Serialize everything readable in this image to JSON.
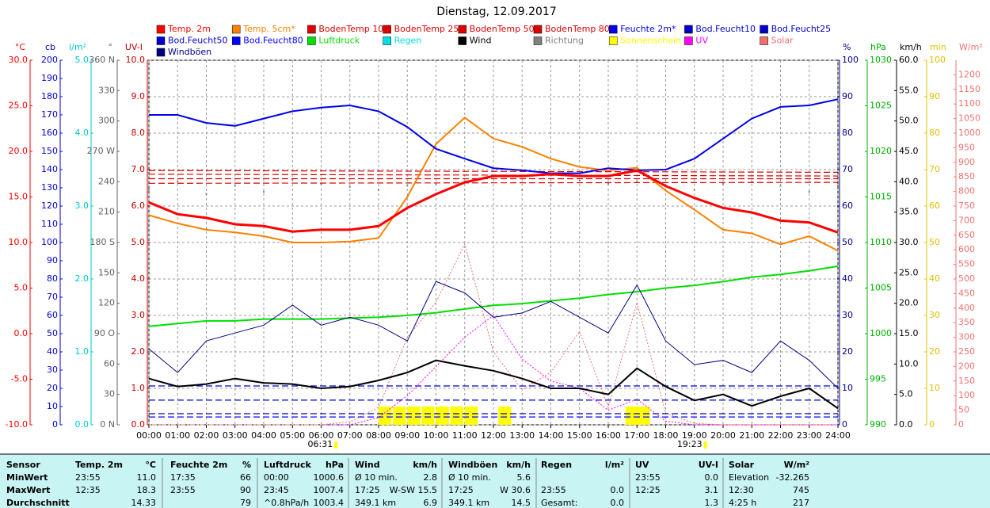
{
  "chart_data": {
    "type": "line",
    "title": "Dienstag, 12.09.2017",
    "grid": true,
    "grid_axis": "uv",
    "xlim": [
      0,
      24
    ],
    "xticks": [
      {
        "value": 0,
        "label": "00:00"
      },
      {
        "value": 1,
        "label": "01:00"
      },
      {
        "value": 2,
        "label": "02:00"
      },
      {
        "value": 3,
        "label": "03:00"
      },
      {
        "value": 4,
        "label": "04:00"
      },
      {
        "value": 5,
        "label": "05:00"
      },
      {
        "value": 6,
        "label": "06:00"
      },
      {
        "value": 7,
        "label": "07:00"
      },
      {
        "value": 8,
        "label": "08:00"
      },
      {
        "value": 9,
        "label": "09:00"
      },
      {
        "value": 10,
        "label": "10:00"
      },
      {
        "value": 11,
        "label": "11:00"
      },
      {
        "value": 12,
        "label": "12:00"
      },
      {
        "value": 13,
        "label": "13:00"
      },
      {
        "value": 14,
        "label": "14:00"
      },
      {
        "value": 15,
        "label": "15:00"
      },
      {
        "value": 16,
        "label": "16:00"
      },
      {
        "value": 17,
        "label": "17:00"
      },
      {
        "value": 18,
        "label": "18:00"
      },
      {
        "value": 19,
        "label": "19:00"
      },
      {
        "value": 20,
        "label": "20:00"
      },
      {
        "value": 21,
        "label": "21:00"
      },
      {
        "value": 22,
        "label": "22:00"
      },
      {
        "value": 23,
        "label": "23:00"
      },
      {
        "value": 24,
        "label": "24:00"
      }
    ],
    "annotations": [
      {
        "x": 6.517,
        "label": "06:31"
      },
      {
        "x": 19.383,
        "label": "19:23"
      }
    ],
    "x": [
      0,
      1,
      2,
      3,
      4,
      5,
      6,
      7,
      8,
      9,
      10,
      11,
      12,
      13,
      14,
      15,
      16,
      17,
      18,
      19,
      20,
      21,
      22,
      23,
      24
    ],
    "axes": {
      "temp": {
        "label": "°C",
        "color": "#ff0000",
        "lim": [
          -10,
          30
        ],
        "ticks": [
          {
            "value": -10,
            "label": "-10.0"
          },
          {
            "value": -5,
            "label": "-5.0"
          },
          {
            "value": 0,
            "label": "0.0"
          },
          {
            "value": 5,
            "label": "5.0"
          },
          {
            "value": 10,
            "label": "10.0"
          },
          {
            "value": 15,
            "label": "15.0"
          },
          {
            "value": 20,
            "label": "20.0"
          },
          {
            "value": 25,
            "label": "25.0"
          },
          {
            "value": 30,
            "label": "30.0"
          }
        ]
      },
      "cb": {
        "label": "cb",
        "color": "#0000cc",
        "lim": [
          0,
          200
        ],
        "ticks": [
          0,
          10,
          20,
          30,
          40,
          50,
          60,
          70,
          80,
          90,
          100,
          110,
          120,
          130,
          140,
          150,
          160,
          170,
          180,
          190,
          200
        ]
      },
      "rain": {
        "label": "l/m²",
        "color": "#00c8c8",
        "lim": [
          0,
          5
        ],
        "ticks": [
          {
            "value": 0,
            "label": "0.0"
          },
          {
            "value": 1,
            "label": "1.0"
          },
          {
            "value": 2,
            "label": "2.0"
          },
          {
            "value": 3,
            "label": "3.0"
          },
          {
            "value": 4,
            "label": "4.0"
          },
          {
            "value": 5,
            "label": "5.0"
          }
        ]
      },
      "dir": {
        "label": "°",
        "color": "#606060",
        "lim": [
          0,
          360
        ],
        "ticks": [
          {
            "value": 0,
            "label": "0 N"
          },
          30,
          60,
          {
            "value": 90,
            "label": "90 O"
          },
          120,
          150,
          {
            "value": 180,
            "label": "180 S"
          },
          210,
          240,
          {
            "value": 270,
            "label": "270 W"
          },
          300,
          330,
          {
            "value": 360,
            "label": "360 N"
          }
        ]
      },
      "uv": {
        "label": "UV-I",
        "color": "#c00000",
        "lim": [
          0,
          10
        ],
        "ticks": [
          {
            "value": 0,
            "label": "0.0"
          },
          {
            "value": 1,
            "label": "1.0"
          },
          {
            "value": 2,
            "label": "2.0"
          },
          {
            "value": 3,
            "label": "3.0"
          },
          {
            "value": 4,
            "label": "4.0"
          },
          {
            "value": 5,
            "label": "5.0"
          },
          {
            "value": 6,
            "label": "6.0"
          },
          {
            "value": 7,
            "label": "7.0"
          },
          {
            "value": 8,
            "label": "8.0"
          },
          {
            "value": 9,
            "label": "9.0"
          },
          {
            "value": 10,
            "label": "10.0"
          }
        ]
      },
      "hum": {
        "label": "%",
        "color": "#000080",
        "lim": [
          0,
          100
        ],
        "ticks": [
          0,
          10,
          20,
          30,
          40,
          50,
          60,
          70,
          80,
          90,
          100
        ]
      },
      "press": {
        "label": "hPa",
        "color": "#00b000",
        "lim": [
          990,
          1030
        ],
        "ticks": [
          990,
          995,
          1000,
          1005,
          1010,
          1015,
          1020,
          1025,
          1030
        ]
      },
      "speed": {
        "label": "km/h",
        "color": "#000000",
        "lim": [
          0,
          60
        ],
        "ticks": [
          {
            "value": 0,
            "label": "0.0"
          },
          {
            "value": 5,
            "label": "5.0"
          },
          {
            "value": 10,
            "label": "10.0"
          },
          {
            "value": 15,
            "label": "15.0"
          },
          {
            "value": 20,
            "label": "20.0"
          },
          {
            "value": 25,
            "label": "25.0"
          },
          {
            "value": 30,
            "label": "30.0"
          },
          {
            "value": 35,
            "label": "35.0"
          },
          {
            "value": 40,
            "label": "40.0"
          },
          {
            "value": 45,
            "label": "45.0"
          },
          {
            "value": 50,
            "label": "50.0"
          },
          {
            "value": 55,
            "label": "55.0"
          },
          {
            "value": 60,
            "label": "60.0"
          }
        ]
      },
      "min": {
        "label": "min",
        "color": "#e0c000",
        "lim": [
          0,
          100
        ],
        "ticks": [
          0,
          10,
          20,
          30,
          40,
          50,
          60,
          70,
          80,
          90,
          100
        ]
      },
      "solar": {
        "label": "W/m²",
        "color": "#f07070",
        "lim": [
          0,
          1250
        ],
        "ticks": [
          0,
          50,
          100,
          150,
          200,
          250,
          300,
          350,
          400,
          450,
          500,
          550,
          600,
          650,
          700,
          750,
          800,
          850,
          900,
          950,
          1000,
          1050,
          1100,
          1150,
          1200
        ]
      }
    },
    "series": [
      {
        "name": "Temp. 2m",
        "color": "#ff0000",
        "axis": "temp",
        "style": "thick",
        "values": [
          14.4,
          13.1,
          12.7,
          12.0,
          11.8,
          11.2,
          11.4,
          11.4,
          11.8,
          13.8,
          15.3,
          16.6,
          17.3,
          17.3,
          17.5,
          17.3,
          17.3,
          17.9,
          16.2,
          14.9,
          13.8,
          13.3,
          12.4,
          12.2,
          11.1
        ]
      },
      {
        "name": "Temp. 5cm*",
        "color": "#ff8000",
        "axis": "temp",
        "style": "line",
        "values": [
          13.0,
          12.1,
          11.4,
          11.1,
          10.7,
          10.0,
          10.0,
          10.1,
          10.5,
          15.0,
          20.8,
          23.7,
          21.4,
          20.5,
          19.2,
          18.3,
          17.9,
          18.2,
          15.7,
          13.6,
          11.4,
          11.0,
          9.8,
          10.7,
          9.1
        ]
      },
      {
        "name": "BodenTemp 10",
        "color": "#dd0000",
        "axis": "temp",
        "style": "dashed",
        "x": [
          0,
          24
        ],
        "values": [
          17.9,
          17.7
        ]
      },
      {
        "name": "BodenTemp 25",
        "color": "#dd0000",
        "axis": "temp",
        "style": "dashed",
        "x": [
          0,
          24
        ],
        "values": [
          17.5,
          17.3
        ]
      },
      {
        "name": "BodenTemp 50",
        "color": "#dd0000",
        "axis": "temp",
        "style": "dashed",
        "x": [
          0,
          24
        ],
        "values": [
          17.0,
          17.0
        ]
      },
      {
        "name": "BodenTemp 80",
        "color": "#dd0000",
        "axis": "temp",
        "style": "dashed",
        "x": [
          0,
          24
        ],
        "values": [
          16.5,
          16.6
        ]
      },
      {
        "name": "Feuchte 2m*",
        "color": "#0000ee",
        "axis": "hum",
        "style": "line",
        "values": [
          85,
          85,
          82.8,
          82,
          84,
          86,
          87,
          87.6,
          86,
          81.7,
          75.7,
          73,
          70.4,
          69.8,
          69,
          69,
          70.4,
          69.8,
          70,
          73,
          78.5,
          84,
          87.2,
          87.6,
          89.3
        ]
      },
      {
        "name": "Bod.Feucht10",
        "color": "#0000cc",
        "axis": "cb",
        "style": "dashed",
        "x": [
          0,
          24
        ],
        "values": [
          21.3,
          21.3
        ]
      },
      {
        "name": "Bod.Feucht25",
        "color": "#0000cc",
        "axis": "cb",
        "style": "dashed",
        "x": [
          0,
          24
        ],
        "values": [
          13.5,
          13.5
        ]
      },
      {
        "name": "Bod.Feucht50",
        "color": "#0000cc",
        "axis": "cb",
        "style": "dashed",
        "x": [
          0,
          24
        ],
        "values": [
          6.1,
          6.1
        ]
      },
      {
        "name": "Bod.Feucht80",
        "color": "#0000ff",
        "axis": "cb",
        "style": "dashed",
        "x": [
          0,
          24
        ],
        "values": [
          4.3,
          4.3
        ]
      },
      {
        "name": "Luftdruck",
        "color": "#00e000",
        "axis": "press",
        "style": "line",
        "values": [
          1000.8,
          1001.1,
          1001.4,
          1001.4,
          1001.6,
          1001.6,
          1001.6,
          1001.7,
          1001.8,
          1002.0,
          1002.3,
          1002.7,
          1003.1,
          1003.3,
          1003.6,
          1003.9,
          1004.3,
          1004.6,
          1005.0,
          1005.3,
          1005.7,
          1006.2,
          1006.5,
          1006.9,
          1007.4
        ]
      },
      {
        "name": "Regen",
        "color": "#00e0e0",
        "axis": "rain",
        "style": "line"
      },
      {
        "name": "Wind",
        "color": "#000000",
        "axis": "speed",
        "style": "line",
        "values": [
          7.6,
          6.3,
          6.7,
          7.6,
          6.9,
          6.7,
          6.0,
          6.3,
          7.3,
          8.6,
          10.6,
          9.7,
          8.9,
          7.6,
          6.0,
          6.0,
          5.0,
          9.3,
          6.3,
          4.0,
          5.0,
          3.1,
          4.7,
          6.0,
          2.7
        ]
      },
      {
        "name": "Richtung",
        "color": "#808080",
        "axis": "dir",
        "style": "scatter",
        "values": [
          232,
          240,
          228,
          236,
          230,
          242,
          238,
          235,
          232,
          236,
          238,
          240,
          245,
          232,
          236,
          241,
          238,
          240,
          236,
          232,
          238,
          240,
          236,
          230,
          236
        ]
      },
      {
        "name": "Sonnenschein",
        "color": "#ffff00",
        "axis": "min",
        "style": "bar",
        "x": [
          8,
          8.5,
          9,
          9.5,
          10,
          10.5,
          11,
          12.17,
          16.6,
          17.0
        ],
        "values": [
          5,
          5,
          5,
          5,
          5,
          5,
          5,
          5,
          5,
          5
        ]
      },
      {
        "name": "UV",
        "color": "#ff00ff",
        "axis": "uv",
        "style": "dotted",
        "values": [
          0,
          0,
          0,
          0,
          0,
          0,
          0,
          0,
          0.2,
          0.8,
          1.6,
          2.4,
          3.0,
          1.8,
          1.2,
          1.0,
          0.4,
          0.7,
          0.1,
          0,
          0,
          0,
          0,
          0,
          0
        ]
      },
      {
        "name": "Solar",
        "color": "#f07070",
        "axis": "solar",
        "style": "dotted",
        "values": [
          0,
          0,
          0,
          0,
          0,
          0,
          0,
          10,
          60,
          300,
          420,
          620,
          250,
          120,
          180,
          320,
          60,
          420,
          40,
          5,
          0,
          0,
          0,
          0,
          0
        ]
      },
      {
        "name": "Windböen",
        "color": "#000080",
        "axis": "speed",
        "style": "thin",
        "values": [
          12.5,
          8.6,
          13.8,
          15.1,
          16.4,
          19.7,
          16.4,
          17.7,
          16.4,
          13.8,
          23.6,
          21.7,
          17.7,
          18.4,
          20.3,
          17.7,
          15.1,
          23.0,
          13.8,
          9.9,
          10.6,
          8.6,
          13.8,
          10.6,
          6.0
        ]
      }
    ]
  },
  "table": {
    "header": [
      "Sensor",
      "Temp. 2m",
      "°C",
      "Feuchte 2m",
      "%",
      "Luftdruck",
      "hPa",
      "Wind",
      "km/h",
      "Windböen",
      "km/h",
      "Regen",
      "l/m²",
      "UV",
      "UV-I",
      "Solar",
      "W/m²"
    ],
    "rows": [
      [
        "MinWert",
        "23:55",
        "11.0",
        "17:35",
        "66",
        "00:00",
        "1000.6",
        "Ø 10 min.",
        "2.8",
        "Ø 10 min.",
        "5.6",
        null,
        null,
        "23:55",
        "0.0",
        "Elevation",
        "-32.265"
      ],
      [
        "MaxWert",
        "12:35",
        "18.3",
        "23:55",
        "90",
        "23:45",
        "1007.4",
        "17:25",
        "W-SW 15.5",
        "17:25",
        "W 30.6",
        "23:55",
        "0.0",
        "12:25",
        "3.1",
        "12:30",
        "745"
      ],
      [
        "Durchschnitt",
        null,
        "14.33",
        null,
        "79",
        "^0.8hPa/h",
        "1003.4",
        "349.1 km",
        "6.9",
        "349.1 km",
        "14.5",
        "Gesamt:",
        "0.0",
        null,
        "1.3",
        "4:25 h",
        "217"
      ]
    ]
  }
}
